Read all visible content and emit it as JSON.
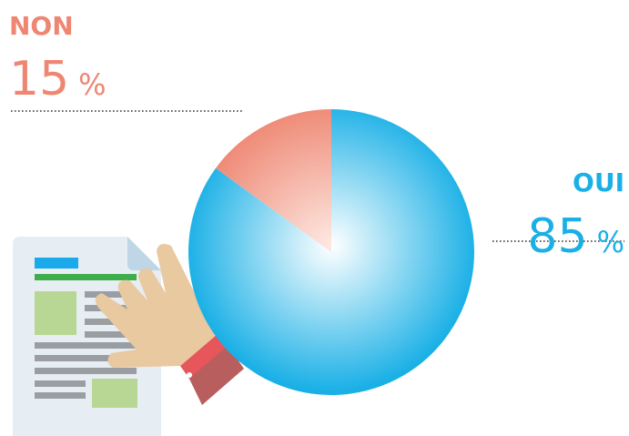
{
  "chart_data": {
    "type": "pie",
    "categories": [
      "NON",
      "OUI"
    ],
    "values": [
      15,
      85
    ],
    "unit": "%",
    "colors": [
      "#ee8672",
      "#1ab0e6"
    ]
  }
}
